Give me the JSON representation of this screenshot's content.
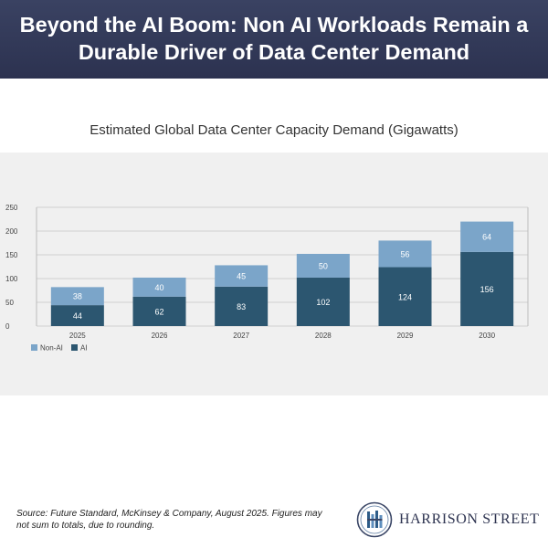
{
  "header": {
    "title_line1": "Beyond the AI Boom: Non AI Workloads Remain a",
    "title_line2": "Durable Driver of Data Center Demand"
  },
  "chart_data": {
    "type": "bar",
    "stacked": true,
    "title": "Estimated Global Data Center Capacity Demand (Gigawatts)",
    "categories": [
      "2025",
      "2026",
      "2027",
      "2028",
      "2029",
      "2030"
    ],
    "series": [
      {
        "name": "AI",
        "values": [
          44,
          62,
          83,
          102,
          124,
          156
        ],
        "color": "#2c5670"
      },
      {
        "name": "Non-AI",
        "values": [
          38,
          40,
          45,
          50,
          56,
          64
        ],
        "color": "#7ba5c9"
      }
    ],
    "yticks": [
      0,
      50,
      100,
      150,
      200,
      250
    ],
    "ylim": [
      0,
      250
    ],
    "grid": true,
    "legend": "bottom-left"
  },
  "footer": {
    "source_line1": "Source: Future Standard, McKinsey & Company, August 2025. Figures may",
    "source_line2": "not sum to totals, due to rounding.",
    "brand": "HARRISON STREET",
    "logo_icon": "harrison-street-logo-icon"
  }
}
